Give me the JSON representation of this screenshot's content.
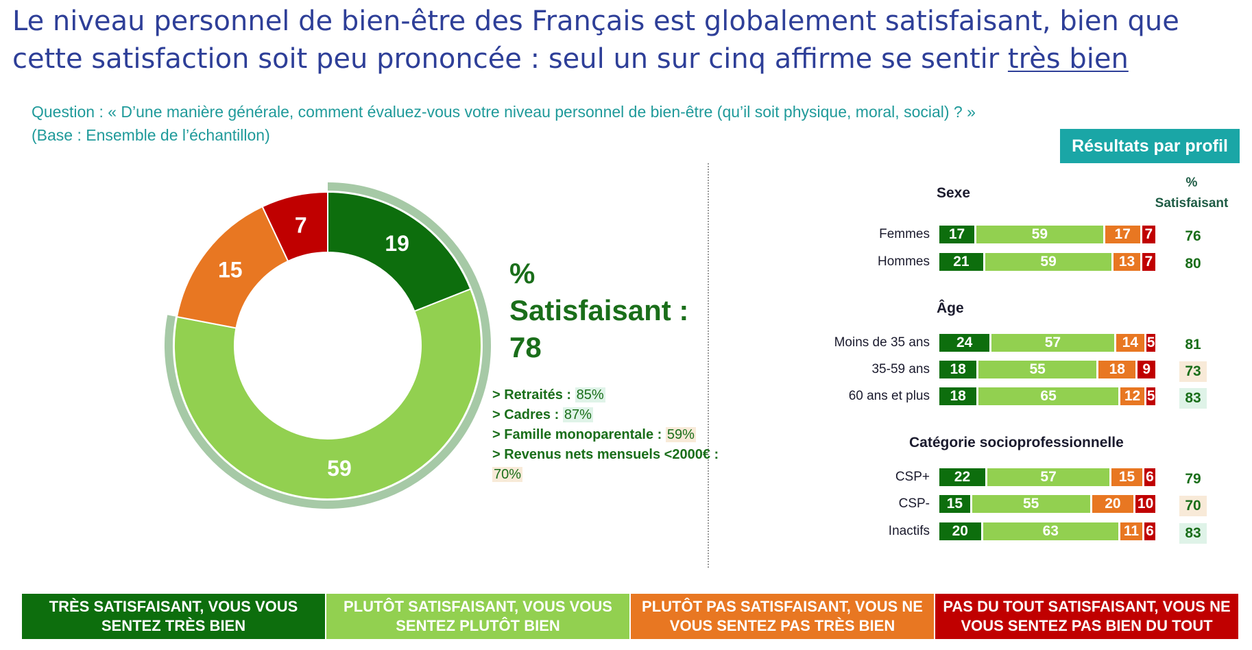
{
  "title": {
    "main": "Le niveau personnel de bien-être des Français est globalement satisfaisant, bien que cette satisfaction soit peu prononcée : seul un sur cinq affirme se sentir",
    "underlined": "très bien"
  },
  "question": {
    "line1": "Question : « D’une manière générale, comment évaluez-vous votre niveau personnel de bien-être (qu’il soit physique, moral, social) ? »",
    "line2": "(Base : Ensemble de l’échantillon)"
  },
  "profile_button": "Résultats par profil",
  "colors": {
    "tres": "#0d6e0d",
    "plutot": "#92d050",
    "plutot_pas": "#e87722",
    "pas_du_tout": "#c00000",
    "halo": "#a6c9a6"
  },
  "kpi": {
    "label_line1": "%",
    "label_line2": "Satisfaisant :",
    "value": "78"
  },
  "details": [
    {
      "label": "> Retraités :",
      "value": "85%",
      "hl": "green"
    },
    {
      "label": "> Cadres :",
      "value": "87%",
      "hl": "green"
    },
    {
      "label": "> Famille monoparentale :",
      "value": "59%",
      "hl": "tan"
    },
    {
      "label": "> Revenus nets mensuels <2000€ :",
      "value": "70%",
      "hl": "tan"
    }
  ],
  "sat_header": {
    "line1": "%",
    "line2": "Satisfaisant"
  },
  "chart_data": [
    {
      "type": "pie",
      "categories": [
        "TRÈS SATISFAISANT, VOUS VOUS SENTEZ TRÈS BIEN",
        "PLUTÔT SATISFAISANT, VOUS VOUS SENTEZ PLUTÔT BIEN",
        "PLUTÔT PAS SATISFAISANT, VOUS NE VOUS SENTEZ PAS TRÈS BIEN",
        "PAS DU TOUT SATISFAISANT, VOUS NE VOUS SENTEZ PAS BIEN DU TOUT"
      ],
      "values": [
        19,
        59,
        15,
        7
      ],
      "style": "donut"
    },
    {
      "type": "bar",
      "stacked": true,
      "orientation": "horizontal",
      "sections": [
        {
          "name": "Sexe",
          "rows": [
            {
              "label": "Femmes",
              "values": [
                17,
                59,
                17,
                7
              ],
              "satisfaisant": "76",
              "sat_hl": ""
            },
            {
              "label": "Hommes",
              "values": [
                21,
                59,
                13,
                7
              ],
              "satisfaisant": "80",
              "sat_hl": ""
            }
          ]
        },
        {
          "name": "Âge",
          "rows": [
            {
              "label": "Moins de 35 ans",
              "values": [
                24,
                57,
                14,
                5
              ],
              "satisfaisant": "81",
              "sat_hl": ""
            },
            {
              "label": "35-59 ans",
              "values": [
                18,
                55,
                18,
                9
              ],
              "satisfaisant": "73",
              "sat_hl": "tan"
            },
            {
              "label": "60 ans et plus",
              "values": [
                18,
                65,
                12,
                5
              ],
              "satisfaisant": "83",
              "sat_hl": "green"
            }
          ]
        },
        {
          "name": "Catégorie socioprofessionnelle",
          "rows": [
            {
              "label": "CSP+",
              "values": [
                22,
                57,
                15,
                6
              ],
              "satisfaisant": "79",
              "sat_hl": ""
            },
            {
              "label": "CSP-",
              "values": [
                15,
                55,
                20,
                10
              ],
              "satisfaisant": "70",
              "sat_hl": "tan"
            },
            {
              "label": "Inactifs",
              "values": [
                20,
                63,
                11,
                6
              ],
              "satisfaisant": "83",
              "sat_hl": "green"
            }
          ]
        }
      ]
    }
  ],
  "legend": [
    {
      "text": "TRÈS SATISFAISANT, VOUS VOUS SENTEZ TRÈS BIEN"
    },
    {
      "text": "PLUTÔT SATISFAISANT, VOUS VOUS SENTEZ PLUTÔT BIEN"
    },
    {
      "text": "PLUTÔT PAS SATISFAISANT, VOUS NE VOUS SENTEZ PAS TRÈS BIEN"
    },
    {
      "text": "PAS DU TOUT SATISFAISANT, VOUS NE VOUS SENTEZ PAS BIEN DU TOUT"
    }
  ]
}
